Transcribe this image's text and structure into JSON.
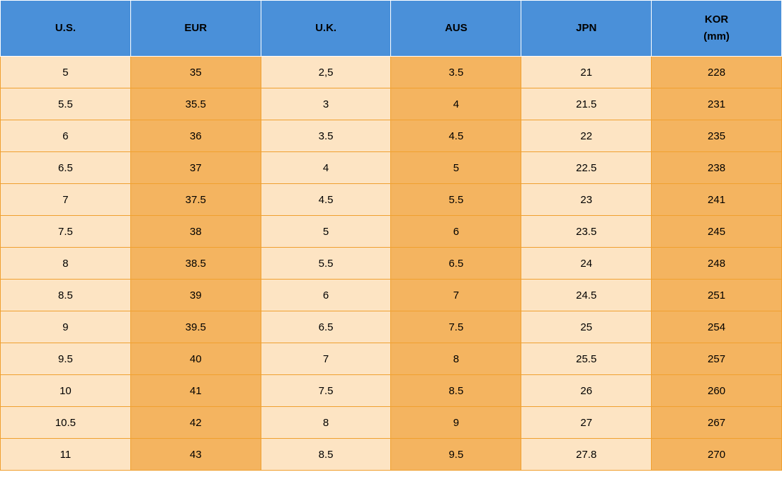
{
  "size_table": {
    "type": "table",
    "header_bg": "#4a90d9",
    "cell_bg_light": "#fde4c3",
    "cell_bg_dark": "#f4b460",
    "border_color_header": "#ffffff",
    "border_color_body": "#f0a030",
    "text_color": "#000000",
    "font_size": 15,
    "header_font_weight": "bold",
    "columns": [
      "U.S.",
      "EUR",
      "U.K.",
      "AUS",
      "JPN",
      "KOR (mm)"
    ],
    "column_shade": [
      "light",
      "dark",
      "light",
      "dark",
      "light",
      "dark"
    ],
    "rows": [
      [
        "5",
        "35",
        "2,5",
        "3.5",
        "21",
        "228"
      ],
      [
        "5.5",
        "35.5",
        "3",
        "4",
        "21.5",
        "231"
      ],
      [
        "6",
        "36",
        "3.5",
        "4.5",
        "22",
        "235"
      ],
      [
        "6.5",
        "37",
        "4",
        "5",
        "22.5",
        "238"
      ],
      [
        "7",
        "37.5",
        "4.5",
        "5.5",
        "23",
        "241"
      ],
      [
        "7.5",
        "38",
        "5",
        "6",
        "23.5",
        "245"
      ],
      [
        "8",
        "38.5",
        "5.5",
        "6.5",
        "24",
        "248"
      ],
      [
        "8.5",
        "39",
        "6",
        "7",
        "24.5",
        "251"
      ],
      [
        "9",
        "39.5",
        "6.5",
        "7.5",
        "25",
        "254"
      ],
      [
        "9.5",
        "40",
        "7",
        "8",
        "25.5",
        "257"
      ],
      [
        "10",
        "41",
        "7.5",
        "8.5",
        "26",
        "260"
      ],
      [
        "10.5",
        "42",
        "8",
        "9",
        "27",
        "267"
      ],
      [
        "11",
        "43",
        "8.5",
        "9.5",
        "27.8",
        "270"
      ]
    ]
  }
}
